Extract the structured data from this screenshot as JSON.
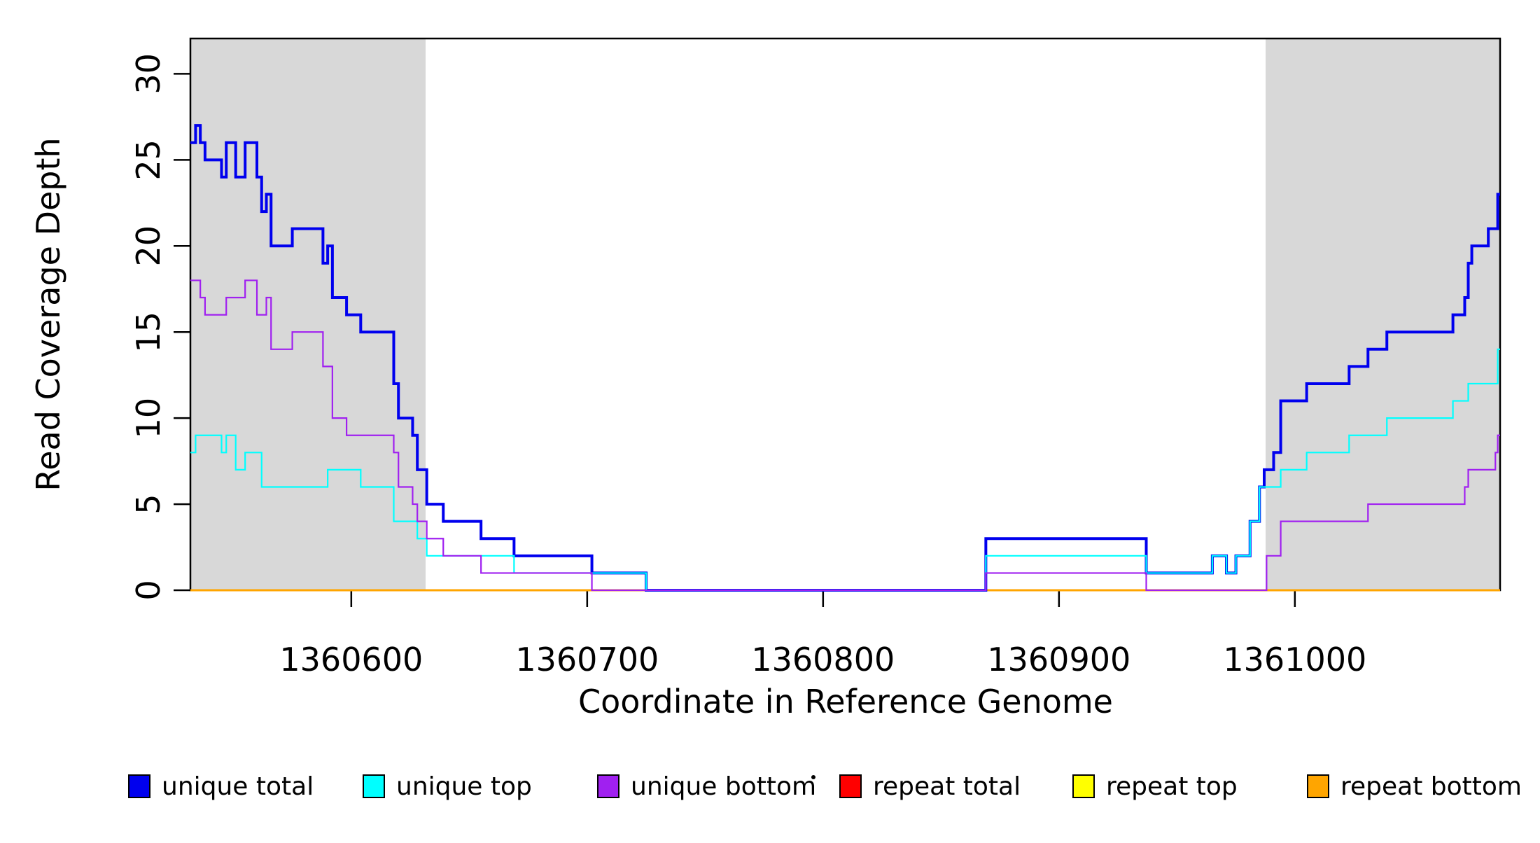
{
  "figure": {
    "xlabel": "Coordinate in Reference Genome",
    "ylabel": "Read Coverage Depth"
  },
  "chart_data": {
    "type": "line",
    "subtype": "step",
    "title": "",
    "xlabel": "Coordinate in Reference Genome",
    "ylabel": "Read Coverage Depth",
    "grid": false,
    "xlim": [
      1360531.8,
      1361087
    ],
    "ylim": [
      0,
      32.05
    ],
    "x_ticks": [
      {
        "value": 1360600,
        "label": "1360600"
      },
      {
        "value": 1360700,
        "label": "1360700"
      },
      {
        "value": 1360800,
        "label": "1360800"
      },
      {
        "value": 1360900,
        "label": "1360900"
      },
      {
        "value": 1361000,
        "label": "1361000"
      }
    ],
    "y_ticks": [
      {
        "value": 0,
        "label": "0"
      },
      {
        "value": 5,
        "label": "5"
      },
      {
        "value": 10,
        "label": "10"
      },
      {
        "value": 15,
        "label": "15"
      },
      {
        "value": 20,
        "label": "20"
      },
      {
        "value": 25,
        "label": "25"
      },
      {
        "value": 30,
        "label": "30"
      }
    ],
    "shaded_regions": [
      {
        "x_start": 1360531.8,
        "x_end": 1360631.5,
        "color": "#d8d8d8"
      },
      {
        "x_start": 1360987.6,
        "x_end": 1361087.0,
        "color": "#d8d8d8"
      }
    ],
    "draw_order": [
      "repeat total",
      "repeat top",
      "repeat bottom",
      "unique total",
      "unique top",
      "unique bottom"
    ],
    "series": [
      {
        "name": "unique total",
        "color": "#0000ee",
        "width": 4,
        "points": [
          [
            1360531.8,
            26
          ],
          [
            1360534,
            27
          ],
          [
            1360536,
            26
          ],
          [
            1360538,
            25
          ],
          [
            1360545,
            24
          ],
          [
            1360547,
            26
          ],
          [
            1360551,
            24
          ],
          [
            1360555,
            26
          ],
          [
            1360560,
            24
          ],
          [
            1360562,
            22
          ],
          [
            1360564,
            23
          ],
          [
            1360566,
            20
          ],
          [
            1360575,
            21
          ],
          [
            1360588,
            19
          ],
          [
            1360590,
            20
          ],
          [
            1360592,
            17
          ],
          [
            1360598,
            16
          ],
          [
            1360604,
            15
          ],
          [
            1360618,
            12
          ],
          [
            1360620,
            10
          ],
          [
            1360626,
            9
          ],
          [
            1360628,
            7
          ],
          [
            1360632,
            5
          ],
          [
            1360639,
            4
          ],
          [
            1360655,
            3
          ],
          [
            1360669,
            2
          ],
          [
            1360702,
            1
          ],
          [
            1360725,
            0
          ],
          [
            1360869,
            3
          ],
          [
            1360937,
            1
          ],
          [
            1360965,
            2
          ],
          [
            1360971,
            1
          ],
          [
            1360975,
            2
          ],
          [
            1360981,
            4
          ],
          [
            1360985,
            6
          ],
          [
            1360987,
            7
          ],
          [
            1360991,
            8
          ],
          [
            1360994,
            11
          ],
          [
            1361005,
            12
          ],
          [
            1361023,
            13
          ],
          [
            1361031,
            14
          ],
          [
            1361039,
            15
          ],
          [
            1361067,
            16
          ],
          [
            1361072,
            17
          ],
          [
            1361073.5,
            19
          ],
          [
            1361075,
            20
          ],
          [
            1361082,
            21
          ],
          [
            1361086,
            23
          ]
        ]
      },
      {
        "name": "unique top",
        "color": "#00ffff",
        "width": 2.2,
        "points": [
          [
            1360531.8,
            8
          ],
          [
            1360534,
            9
          ],
          [
            1360545,
            8
          ],
          [
            1360547,
            9
          ],
          [
            1360551,
            7
          ],
          [
            1360555,
            8
          ],
          [
            1360562,
            6
          ],
          [
            1360590,
            7
          ],
          [
            1360604,
            6
          ],
          [
            1360618,
            4
          ],
          [
            1360628,
            3
          ],
          [
            1360632,
            2
          ],
          [
            1360669,
            1
          ],
          [
            1360725,
            0
          ],
          [
            1360869,
            2
          ],
          [
            1360937,
            1
          ],
          [
            1360965,
            2
          ],
          [
            1360971,
            1
          ],
          [
            1360975,
            2
          ],
          [
            1360981,
            4
          ],
          [
            1360985,
            6
          ],
          [
            1360994,
            7
          ],
          [
            1361005,
            8
          ],
          [
            1361023,
            9
          ],
          [
            1361039,
            10
          ],
          [
            1361067,
            11
          ],
          [
            1361073.5,
            12
          ],
          [
            1361086,
            14
          ]
        ]
      },
      {
        "name": "unique bottom",
        "color": "#a020f0",
        "width": 2.2,
        "points": [
          [
            1360531.8,
            18
          ],
          [
            1360536,
            17
          ],
          [
            1360538,
            16
          ],
          [
            1360547,
            17
          ],
          [
            1360555,
            18
          ],
          [
            1360560,
            16
          ],
          [
            1360564,
            17
          ],
          [
            1360566,
            14
          ],
          [
            1360575,
            15
          ],
          [
            1360588,
            13
          ],
          [
            1360592,
            10
          ],
          [
            1360598,
            9
          ],
          [
            1360618,
            8
          ],
          [
            1360620,
            6
          ],
          [
            1360626,
            5
          ],
          [
            1360628,
            4
          ],
          [
            1360632,
            3
          ],
          [
            1360639,
            2
          ],
          [
            1360655,
            1
          ],
          [
            1360702,
            0
          ],
          [
            1360869,
            1
          ],
          [
            1360937,
            0
          ],
          [
            1360988,
            2
          ],
          [
            1360994,
            4
          ],
          [
            1361031,
            5
          ],
          [
            1361072,
            6
          ],
          [
            1361073.5,
            7
          ],
          [
            1361085,
            8
          ],
          [
            1361086,
            9
          ]
        ]
      },
      {
        "name": "repeat total",
        "color": "#ff0000",
        "width": 2,
        "points": [
          [
            1360531.8,
            0
          ]
        ]
      },
      {
        "name": "repeat top",
        "color": "#ffff00",
        "width": 2,
        "points": [
          [
            1360531.8,
            0
          ]
        ]
      },
      {
        "name": "repeat bottom",
        "color": "#ffa500",
        "width": 3,
        "points": [
          [
            1360531.8,
            0
          ]
        ]
      }
    ],
    "legend": {
      "position": "bottom",
      "items": [
        {
          "label": "unique total",
          "color": "#0000ee"
        },
        {
          "label": "unique top",
          "color": "#00ffff"
        },
        {
          "label": "unique bottom",
          "color": "#a020f0"
        },
        {
          "label": "repeat total",
          "color": "#ff0000"
        },
        {
          "label": "repeat top",
          "color": "#ffff00"
        },
        {
          "label": "repeat bottom",
          "color": "#ffa500"
        }
      ]
    },
    "axis_color": "#000000",
    "plot_background": "#ffffff"
  }
}
